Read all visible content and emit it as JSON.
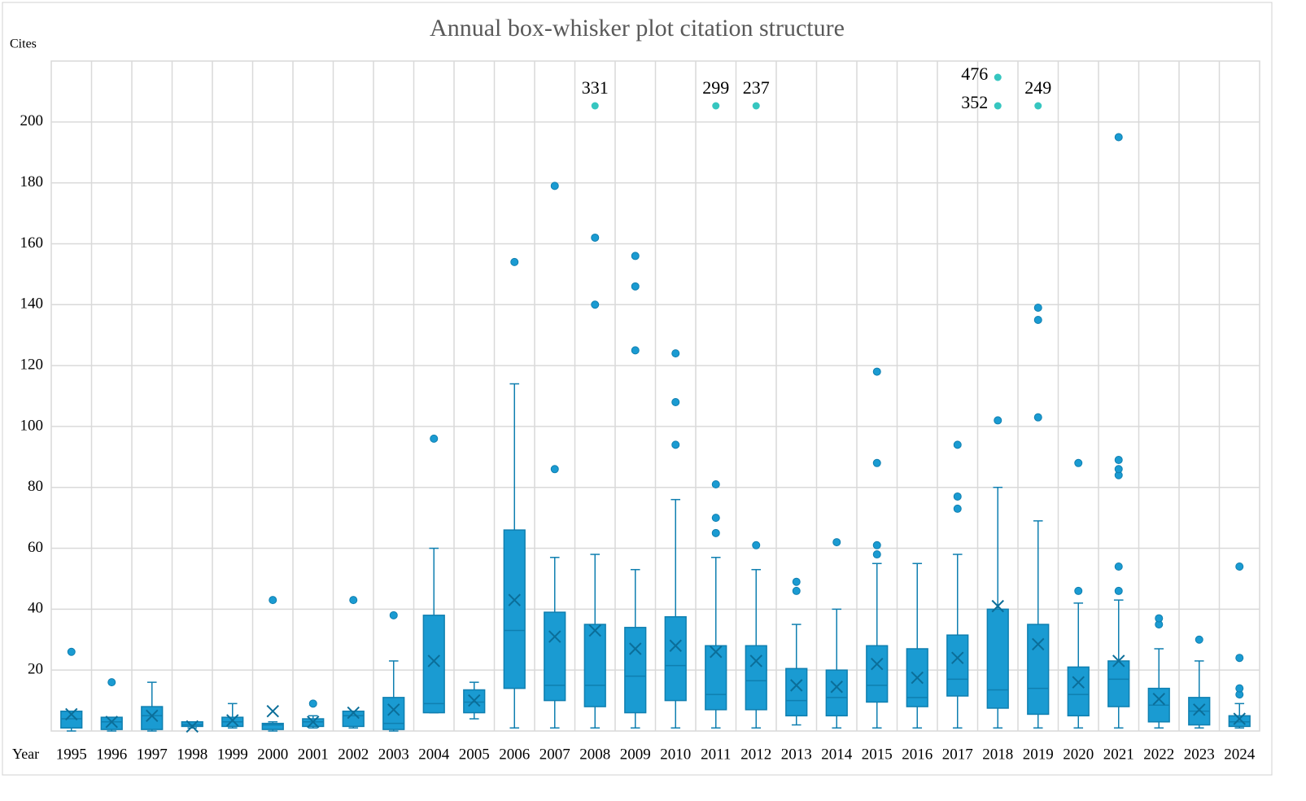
{
  "chart_data": {
    "type": "box",
    "title": "Annual box-whisker plot citation structure",
    "y_label": "Cites",
    "x_label": "Year",
    "categories": [
      "1995",
      "1996",
      "1997",
      "1998",
      "1999",
      "2000",
      "2001",
      "2002",
      "2003",
      "2004",
      "2005",
      "2006",
      "2007",
      "2008",
      "2009",
      "2010",
      "2011",
      "2012",
      "2013",
      "2014",
      "2015",
      "2016",
      "2017",
      "2018",
      "2019",
      "2020",
      "2021",
      "2022",
      "2023",
      "2024"
    ],
    "boxes": [
      {
        "min": 0,
        "q1": 1,
        "median": 4,
        "q3": 6.5,
        "max": 6.5,
        "mean": 5.5,
        "outliers": [
          26
        ]
      },
      {
        "min": 0,
        "q1": 0.5,
        "median": 3,
        "q3": 4.5,
        "max": 4.5,
        "mean": 3,
        "outliers": [
          16
        ]
      },
      {
        "min": 0,
        "q1": 0.5,
        "median": 5,
        "q3": 8,
        "max": 16,
        "mean": 5,
        "outliers": []
      },
      {
        "min": 1,
        "q1": 1.5,
        "median": 2,
        "q3": 3,
        "max": 3,
        "mean": 1.5,
        "outliers": []
      },
      {
        "min": 1,
        "q1": 1.5,
        "median": 3,
        "q3": 4.5,
        "max": 9,
        "mean": 3.5,
        "outliers": []
      },
      {
        "min": 0,
        "q1": 0.5,
        "median": 2,
        "q3": 2.5,
        "max": 3,
        "mean": 6.5,
        "outliers": [
          43
        ]
      },
      {
        "min": 1,
        "q1": 1.5,
        "median": 3,
        "q3": 4,
        "max": 5,
        "mean": 3,
        "outliers": [
          9
        ]
      },
      {
        "min": 1,
        "q1": 1.5,
        "median": 5,
        "q3": 6.5,
        "max": 6.5,
        "mean": 6,
        "outliers": [
          43
        ]
      },
      {
        "min": 0,
        "q1": 0.5,
        "median": 2.5,
        "q3": 11,
        "max": 23,
        "mean": 7,
        "outliers": [
          38
        ]
      },
      {
        "min": 6,
        "q1": 6,
        "median": 9,
        "q3": 38,
        "max": 60,
        "mean": 23,
        "outliers": [
          96
        ]
      },
      {
        "min": 4,
        "q1": 6,
        "median": 9.5,
        "q3": 13.5,
        "max": 16,
        "mean": 10,
        "outliers": []
      },
      {
        "min": 1,
        "q1": 14,
        "median": 33,
        "q3": 66,
        "max": 114,
        "mean": 43,
        "outliers": [
          154
        ]
      },
      {
        "min": 1,
        "q1": 10,
        "median": 15,
        "q3": 39,
        "max": 57,
        "mean": 31,
        "outliers": [
          86,
          179
        ]
      },
      {
        "min": 1,
        "q1": 8,
        "median": 15,
        "q3": 35,
        "max": 58,
        "mean": 33,
        "outliers": [
          140,
          162
        ],
        "capped": [
          331
        ]
      },
      {
        "min": 1,
        "q1": 6,
        "median": 18,
        "q3": 34,
        "max": 53,
        "mean": 27,
        "outliers": [
          125,
          146,
          156
        ]
      },
      {
        "min": 1,
        "q1": 10,
        "median": 21.5,
        "q3": 37.5,
        "max": 76,
        "mean": 28,
        "outliers": [
          94,
          108,
          124
        ]
      },
      {
        "min": 1,
        "q1": 7,
        "median": 12,
        "q3": 28,
        "max": 57,
        "mean": 26,
        "outliers": [
          65,
          70,
          81
        ],
        "capped": [
          299
        ]
      },
      {
        "min": 1,
        "q1": 7,
        "median": 16.5,
        "q3": 28,
        "max": 53,
        "mean": 23,
        "outliers": [
          61
        ],
        "capped": [
          237
        ]
      },
      {
        "min": 2,
        "q1": 5,
        "median": 10,
        "q3": 20.5,
        "max": 35,
        "mean": 15,
        "outliers": [
          46,
          49
        ]
      },
      {
        "min": 1,
        "q1": 5,
        "median": 11,
        "q3": 20,
        "max": 40,
        "mean": 14.5,
        "outliers": [
          62
        ]
      },
      {
        "min": 1,
        "q1": 9.5,
        "median": 15,
        "q3": 28,
        "max": 55,
        "mean": 22,
        "outliers": [
          58,
          61,
          88,
          118
        ]
      },
      {
        "min": 1,
        "q1": 8,
        "median": 11,
        "q3": 27,
        "max": 55,
        "mean": 17.5,
        "outliers": []
      },
      {
        "min": 1,
        "q1": 11.5,
        "median": 17,
        "q3": 31.5,
        "max": 58,
        "mean": 24,
        "outliers": [
          73,
          77,
          94
        ]
      },
      {
        "min": 1,
        "q1": 7.5,
        "median": 13.5,
        "q3": 40,
        "max": 80,
        "mean": 41,
        "outliers": [
          102
        ],
        "capped": [
          476,
          352
        ]
      },
      {
        "min": 1,
        "q1": 5.5,
        "median": 14,
        "q3": 35,
        "max": 69,
        "mean": 28.5,
        "outliers": [
          103,
          135,
          139
        ],
        "capped": [
          249
        ]
      },
      {
        "min": 1,
        "q1": 5,
        "median": 12,
        "q3": 21,
        "max": 42,
        "mean": 16,
        "outliers": [
          46,
          88
        ]
      },
      {
        "min": 1,
        "q1": 8,
        "median": 17,
        "q3": 23,
        "max": 43,
        "mean": 23,
        "outliers": [
          46,
          54,
          84,
          86,
          89,
          195
        ]
      },
      {
        "min": 1,
        "q1": 3,
        "median": 8.5,
        "q3": 14,
        "max": 27,
        "mean": 10.5,
        "outliers": [
          35,
          37
        ]
      },
      {
        "min": 1,
        "q1": 2,
        "median": 6.5,
        "q3": 11,
        "max": 23,
        "mean": 7,
        "outliers": [
          30
        ]
      },
      {
        "min": 1,
        "q1": 1.5,
        "median": 3,
        "q3": 5,
        "max": 9,
        "mean": 4,
        "outliers": [
          12,
          14,
          24,
          54
        ]
      }
    ],
    "color": "#1a9bd2",
    "capped_color": "#36c6c0",
    "ylim": [
      0,
      220
    ],
    "yticks": [
      20,
      40,
      60,
      80,
      100,
      120,
      140,
      160,
      180,
      200
    ],
    "grid": true
  }
}
